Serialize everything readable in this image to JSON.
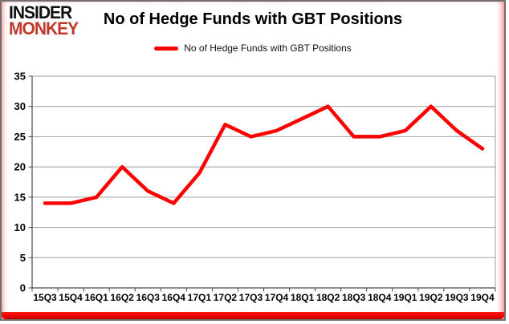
{
  "logo": {
    "line1": "INSIDER",
    "line2": "MONKEY",
    "line2_color": "#c0392b"
  },
  "header": {
    "title": "No of Hedge Funds with GBT Positions"
  },
  "legend": {
    "label": "No of Hedge Funds with GBT Positions",
    "swatch_color": "#ff0000"
  },
  "chart_data": {
    "type": "line",
    "title": "No of Hedge Funds with GBT Positions",
    "categories": [
      "15Q3",
      "15Q4",
      "16Q1",
      "16Q2",
      "16Q3",
      "16Q4",
      "17Q1",
      "17Q2",
      "17Q3",
      "17Q4",
      "18Q1",
      "18Q2",
      "18Q3",
      "18Q4",
      "19Q1",
      "19Q2",
      "19Q3",
      "19Q4"
    ],
    "series": [
      {
        "name": "No of Hedge Funds with GBT Positions",
        "color": "#ff0000",
        "values": [
          14,
          14,
          15,
          20,
          16,
          14,
          19,
          27,
          25,
          26,
          28,
          30,
          25,
          25,
          26,
          30,
          26,
          23
        ]
      }
    ],
    "xlabel": "",
    "ylabel": "",
    "ylim": [
      0,
      35
    ],
    "yticks": [
      0,
      5,
      10,
      15,
      20,
      25,
      30,
      35
    ],
    "grid": "horizontal",
    "legend_position": "top"
  },
  "colors": {
    "line": "#ff0000",
    "gridline": "#9e9e9e",
    "axis": "#4a4a4a",
    "background": "#ffffff",
    "accent": "#f40000"
  }
}
